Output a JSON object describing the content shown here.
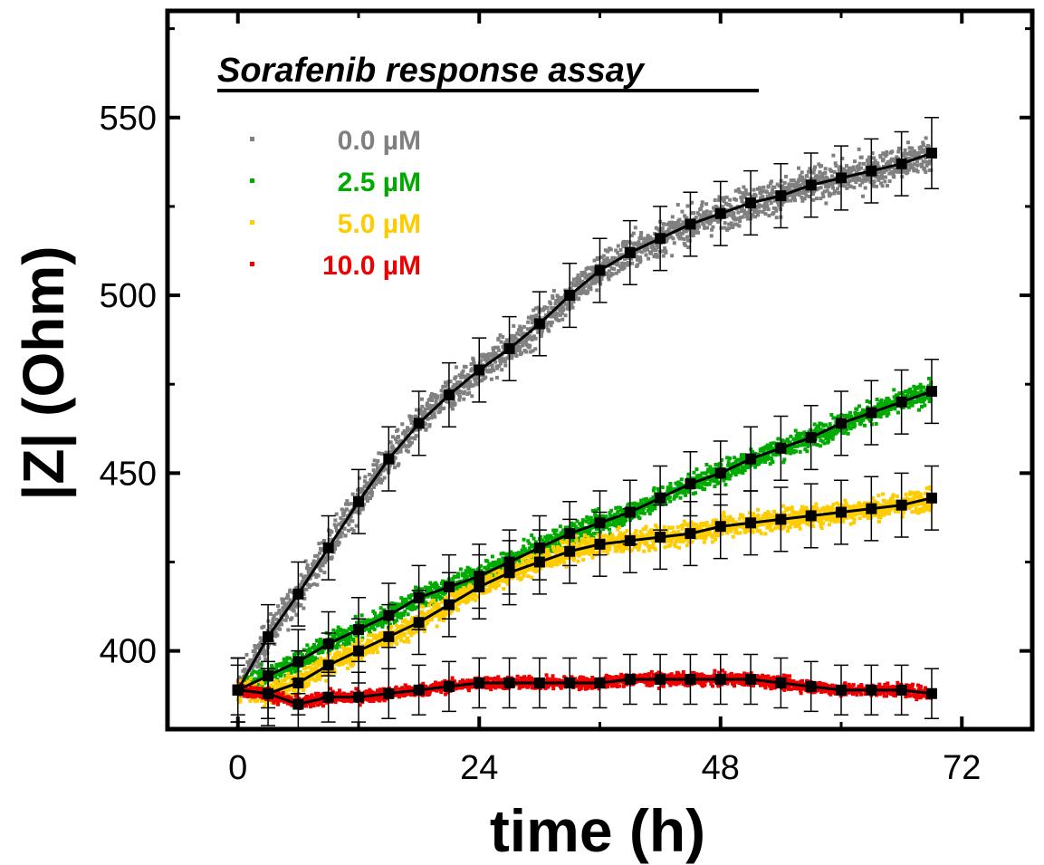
{
  "chart_data": {
    "type": "scatter",
    "title": "Sorafenib response assay",
    "xlabel": "time (h)",
    "ylabel": "|Z| (Ohm)",
    "xlim": [
      -7,
      79
    ],
    "ylim": [
      378,
      580
    ],
    "xticks": [
      0,
      24,
      48,
      72
    ],
    "yticks": [
      400,
      450,
      500,
      550
    ],
    "xtick_labels": [
      "0",
      "24",
      "48",
      "72"
    ],
    "ytick_labels": [
      "400",
      "450",
      "500",
      "550"
    ],
    "grid": false,
    "legend_position": "top-left",
    "series": [
      {
        "name": "0.0 µM",
        "color": "#808080",
        "x": [
          0,
          3,
          6,
          9,
          12,
          15,
          18,
          21,
          24,
          27,
          30,
          33,
          36,
          39,
          42,
          45,
          48,
          51,
          54,
          57,
          60,
          63,
          66,
          69
        ],
        "y": [
          389,
          404,
          416,
          429,
          442,
          454,
          464,
          472,
          479,
          485,
          492,
          500,
          507,
          512,
          516,
          520,
          523,
          526,
          528,
          531,
          533,
          535,
          537,
          540
        ],
        "error": [
          9,
          9,
          9,
          9,
          9,
          9,
          9,
          9,
          9,
          9,
          9,
          9,
          9,
          9,
          9,
          9,
          9,
          9,
          9,
          9,
          9,
          9,
          9,
          10
        ],
        "scatter_noise": 3.5
      },
      {
        "name": "2.5 µM",
        "color": "#00aa00",
        "x": [
          0,
          3,
          6,
          9,
          12,
          15,
          18,
          21,
          24,
          27,
          30,
          33,
          36,
          39,
          42,
          45,
          48,
          51,
          54,
          57,
          60,
          63,
          66,
          69
        ],
        "y": [
          389,
          393,
          397,
          402,
          406,
          410,
          415,
          418,
          421,
          425,
          429,
          433,
          436,
          439,
          443,
          447,
          450,
          454,
          457,
          460,
          464,
          467,
          470,
          473
        ],
        "error": [
          9,
          9,
          9,
          9,
          9,
          9,
          9,
          9,
          9,
          9,
          9,
          9,
          9,
          9,
          9,
          9,
          9,
          9,
          9,
          9,
          9,
          9,
          9,
          9
        ],
        "scatter_noise": 2.2
      },
      {
        "name": "5.0 µM",
        "color": "#ffcc00",
        "x": [
          0,
          3,
          6,
          9,
          12,
          15,
          18,
          21,
          24,
          27,
          30,
          33,
          36,
          39,
          42,
          45,
          48,
          51,
          54,
          57,
          60,
          63,
          66,
          69
        ],
        "y": [
          389,
          388,
          391,
          396,
          400,
          404,
          408,
          413,
          418,
          422,
          425,
          428,
          430,
          431,
          432,
          433,
          435,
          436,
          437,
          438,
          439,
          440,
          441,
          443
        ],
        "error": [
          9,
          9,
          9,
          9,
          9,
          9,
          9,
          9,
          9,
          9,
          9,
          9,
          9,
          9,
          9,
          9,
          9,
          9,
          9,
          9,
          9,
          9,
          9,
          9
        ],
        "scatter_noise": 2.2
      },
      {
        "name": "10.0 µM",
        "color": "#ee0000",
        "x": [
          0,
          3,
          6,
          9,
          12,
          15,
          18,
          21,
          24,
          27,
          30,
          33,
          36,
          39,
          42,
          45,
          48,
          51,
          54,
          57,
          60,
          63,
          66,
          69
        ],
        "y": [
          389,
          388,
          385,
          387,
          387,
          388,
          389,
          390,
          391,
          391,
          391,
          391,
          391,
          392,
          392,
          392,
          392,
          392,
          391,
          390,
          389,
          389,
          389,
          388
        ],
        "error": [
          7,
          7,
          7,
          7,
          7,
          7,
          7,
          7,
          7,
          7,
          7,
          7,
          7,
          7,
          7,
          7,
          7,
          7,
          7,
          7,
          7,
          7,
          7,
          7
        ],
        "scatter_noise": 1.2
      }
    ]
  }
}
